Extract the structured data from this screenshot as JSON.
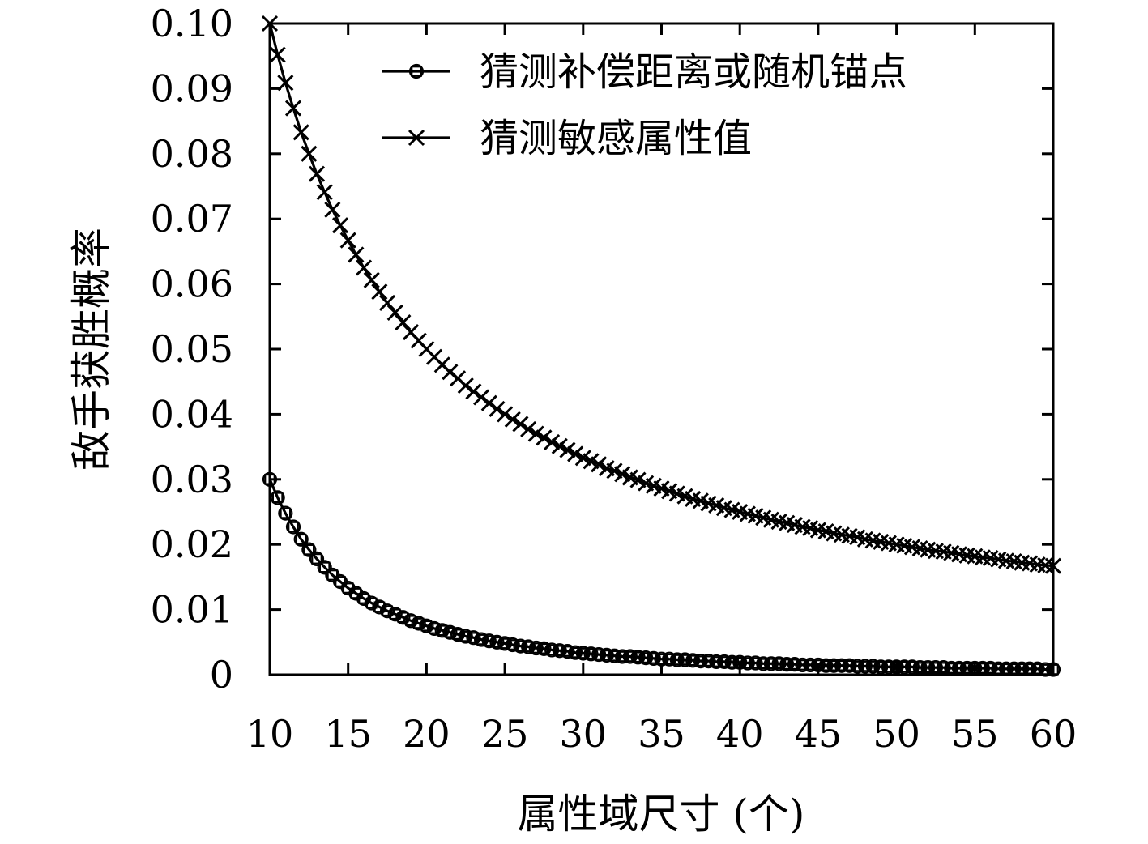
{
  "chart_data": {
    "type": "line",
    "title": "",
    "xlabel": "属性域尺寸 (个)",
    "ylabel": "敌手获胜概率",
    "xlim": [
      10,
      60
    ],
    "ylim": [
      0,
      0.1
    ],
    "x_ticks": [
      "10",
      "15",
      "20",
      "25",
      "30",
      "35",
      "40",
      "45",
      "50",
      "55",
      "60"
    ],
    "y_ticks": [
      "0",
      "0.01",
      "0.02",
      "0.03",
      "0.04",
      "0.05",
      "0.06",
      "0.07",
      "0.08",
      "0.09",
      "0.10"
    ],
    "x_tick_values": [
      10,
      15,
      20,
      25,
      30,
      35,
      40,
      45,
      50,
      55,
      60
    ],
    "y_tick_values": [
      0,
      0.01,
      0.02,
      0.03,
      0.04,
      0.05,
      0.06,
      0.07,
      0.08,
      0.09,
      0.1
    ],
    "grid": false,
    "legend_position": "top-right",
    "colors": {
      "line": "#000000",
      "background": "#ffffff"
    },
    "series": [
      {
        "name": "猜测补偿距离或随机锚点",
        "marker": "square-circle",
        "x": [
          10,
          10.5,
          11,
          11.5,
          12,
          12.5,
          13,
          13.5,
          14,
          14.5,
          15,
          15.5,
          16,
          16.5,
          17,
          17.5,
          18,
          18.5,
          19,
          19.5,
          20,
          20.5,
          21,
          21.5,
          22,
          22.5,
          23,
          23.5,
          24,
          24.5,
          25,
          25.5,
          26,
          26.5,
          27,
          27.5,
          28,
          28.5,
          29,
          29.5,
          30,
          30.5,
          31,
          31.5,
          32,
          32.5,
          33,
          33.5,
          34,
          34.5,
          35,
          35.5,
          36,
          36.5,
          37,
          37.5,
          38,
          38.5,
          39,
          39.5,
          40,
          40.5,
          41,
          41.5,
          42,
          42.5,
          43,
          43.5,
          44,
          44.5,
          45,
          45.5,
          46,
          46.5,
          47,
          47.5,
          48,
          48.5,
          49,
          49.5,
          50,
          50.5,
          51,
          51.5,
          52,
          52.5,
          53,
          53.5,
          54,
          54.5,
          55,
          55.5,
          56,
          56.5,
          57,
          57.5,
          58,
          58.5,
          59,
          59.5,
          60
        ],
        "values": [
          0.03,
          0.0272,
          0.0248,
          0.0227,
          0.0208,
          0.0192,
          0.0178,
          0.0165,
          0.0153,
          0.0143,
          0.0133,
          0.0125,
          0.0117,
          0.011,
          0.0104,
          0.0098,
          0.0093,
          0.0088,
          0.0083,
          0.0079,
          0.0075,
          0.0071,
          0.0068,
          0.0065,
          0.0062,
          0.0059,
          0.0057,
          0.0054,
          0.0052,
          0.005,
          0.0048,
          0.0046,
          0.0044,
          0.0043,
          0.0041,
          0.004,
          0.0038,
          0.0037,
          0.0036,
          0.0034,
          0.0033,
          0.0032,
          0.0031,
          0.003,
          0.0029,
          0.0028,
          0.0028,
          0.0027,
          0.0026,
          0.0025,
          0.0024,
          0.0024,
          0.0023,
          0.0023,
          0.0022,
          0.0021,
          0.0021,
          0.002,
          0.002,
          0.0019,
          0.0019,
          0.0018,
          0.0018,
          0.0017,
          0.0017,
          0.0017,
          0.0016,
          0.0016,
          0.0015,
          0.0015,
          0.0015,
          0.0014,
          0.0014,
          0.0014,
          0.0014,
          0.0013,
          0.0013,
          0.0013,
          0.0012,
          0.0012,
          0.0012,
          0.0012,
          0.0012,
          0.0011,
          0.0011,
          0.0011,
          0.0011,
          0.001,
          0.001,
          0.001,
          0.001,
          0.001,
          0.001,
          0.0009,
          0.0009,
          0.0009,
          0.0009,
          0.0009,
          0.0009,
          0.0008,
          0.0008
        ]
      },
      {
        "name": "猜测敏感属性值",
        "marker": "x",
        "x": [
          10,
          10.5,
          11,
          11.5,
          12,
          12.5,
          13,
          13.5,
          14,
          14.5,
          15,
          15.5,
          16,
          16.5,
          17,
          17.5,
          18,
          18.5,
          19,
          19.5,
          20,
          20.5,
          21,
          21.5,
          22,
          22.5,
          23,
          23.5,
          24,
          24.5,
          25,
          25.5,
          26,
          26.5,
          27,
          27.5,
          28,
          28.5,
          29,
          29.5,
          30,
          30.5,
          31,
          31.5,
          32,
          32.5,
          33,
          33.5,
          34,
          34.5,
          35,
          35.5,
          36,
          36.5,
          37,
          37.5,
          38,
          38.5,
          39,
          39.5,
          40,
          40.5,
          41,
          41.5,
          42,
          42.5,
          43,
          43.5,
          44,
          44.5,
          45,
          45.5,
          46,
          46.5,
          47,
          47.5,
          48,
          48.5,
          49,
          49.5,
          50,
          50.5,
          51,
          51.5,
          52,
          52.5,
          53,
          53.5,
          54,
          54.5,
          55,
          55.5,
          56,
          56.5,
          57,
          57.5,
          58,
          58.5,
          59,
          59.5,
          60
        ],
        "values": [
          0.1,
          0.0952,
          0.0909,
          0.087,
          0.0833,
          0.08,
          0.0769,
          0.0741,
          0.0714,
          0.069,
          0.0667,
          0.0645,
          0.0625,
          0.0606,
          0.0588,
          0.0571,
          0.0556,
          0.0541,
          0.0526,
          0.0513,
          0.05,
          0.0488,
          0.0476,
          0.0465,
          0.0455,
          0.0444,
          0.0435,
          0.0426,
          0.0417,
          0.0408,
          0.04,
          0.0392,
          0.0385,
          0.0377,
          0.037,
          0.0364,
          0.0357,
          0.0351,
          0.0345,
          0.0339,
          0.0333,
          0.0328,
          0.0323,
          0.0317,
          0.0313,
          0.0308,
          0.0303,
          0.0299,
          0.0294,
          0.029,
          0.0286,
          0.0282,
          0.0278,
          0.0274,
          0.027,
          0.0267,
          0.0263,
          0.026,
          0.0256,
          0.0253,
          0.025,
          0.0247,
          0.0244,
          0.0241,
          0.0238,
          0.0235,
          0.0233,
          0.023,
          0.0227,
          0.0225,
          0.0222,
          0.022,
          0.0217,
          0.0215,
          0.0213,
          0.0211,
          0.0208,
          0.0206,
          0.0204,
          0.0202,
          0.02,
          0.0198,
          0.0196,
          0.0194,
          0.0192,
          0.019,
          0.0189,
          0.0187,
          0.0185,
          0.0183,
          0.0182,
          0.018,
          0.0179,
          0.0177,
          0.0175,
          0.0174,
          0.0172,
          0.0171,
          0.0169,
          0.0168,
          0.0167
        ]
      }
    ]
  }
}
